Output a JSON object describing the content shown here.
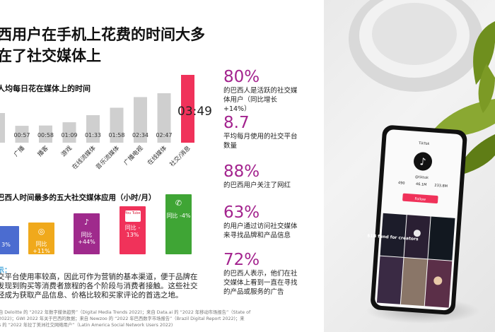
{
  "title_line1": "西用户在手机上花费的时间大多",
  "title_line2": "在了社交媒体上",
  "chart1": {
    "title": "人均每日花在媒体上的时间",
    "highlight_color": "#f0325a",
    "base_color": "#cfcfcf"
  },
  "chart_data": [
    {
      "type": "bar",
      "title": "人均每日花在媒体上的时间",
      "categories": [
        "",
        "广播",
        "播客",
        "游戏",
        "在线流媒体",
        "音乐流媒体",
        "广播电视",
        "在线媒体",
        "社交/消息"
      ],
      "value_labels": [
        "",
        "00:57",
        "00:58",
        "01:09",
        "01:33",
        "01:58",
        "02:34",
        "02:47",
        "03:49"
      ],
      "values_minutes": [
        null,
        57,
        58,
        69,
        93,
        118,
        154,
        167,
        229
      ]
    },
    {
      "type": "bar",
      "title": "巴西人时间最多的五大社交媒体应用（小时/月）",
      "categories": [
        "",
        "Instagram",
        "TikTok",
        "YouTube",
        "WhatsApp"
      ],
      "labels": [
        "3%",
        "同比 +11%",
        "同比 +44%",
        "同比 - 13%",
        "同比 -4%"
      ]
    }
  ],
  "chart2": {
    "title": "巴西人时间最多的五大社交媒体应用（小时/月）",
    "apps": [
      {
        "name": "",
        "icon": "",
        "label": "3%",
        "color": "#4b6cd0"
      },
      {
        "name": "Instagram",
        "icon": "instagram-icon",
        "label": "同比 +11%",
        "color": "#f0a91c"
      },
      {
        "name": "TikTok",
        "icon": "tiktok-icon",
        "label": "同比 +44%",
        "color": "#9f2a8c"
      },
      {
        "name": "YouTube",
        "icon": "youtube-icon",
        "label": "同比 - 13%",
        "color": "#f0325a",
        "icon_text": "You Tube"
      },
      {
        "name": "WhatsApp",
        "icon": "whatsapp-icon",
        "label": "同比 -4%",
        "color": "#3fa535"
      }
    ]
  },
  "stats": [
    {
      "num": "80%",
      "desc": "的巴西人是活跃的社交媒体用户（同比增长 +14%）"
    },
    {
      "num": "8.7",
      "desc": "平均每月使用的社交平台数量"
    },
    {
      "num": "88%",
      "desc": "的巴西用户关注了网红"
    },
    {
      "num": "63%",
      "desc": "的用户通过访问社交媒体来寻找品牌和产品信息"
    },
    {
      "num": "72%",
      "desc": "的巴西人表示，他们在社交媒体上看到一直在寻找的产品或服务的广告"
    }
  ],
  "tip_head": "示：",
  "tip_lines": [
    "交平台使用率较高，因此可作为营销的基本渠道，便于品牌在",
    "发现到购买等消费者旅程的各个阶段与消费者接触。这些社交",
    "经成为获取产品信息、价格比较和买家评论的首选之地。"
  ],
  "source_lines": [
    "自 Deloitte 的 “2022 年数字媒体趋势”（Digital Media Trends 2022)；来自 Data.ai 的 “2022 年移动市场报告”（State of",
    "2022)；GWI 2022 年关于巴西的数据；来自 Newzoo 的 “2022 年巴西数字市场报告”（Brazil Digital Report 2022)；来",
    "s 的 “2022 年拉丁美洲社交网络用户”（Latin America Social Network Users 2022)"
  ],
  "phone": {
    "app_name": "TikTok",
    "handle": "@tiktok",
    "count1": "490",
    "count2": "46.1M",
    "count3": "233.8M",
    "follow_label": "Follow",
    "video_text": "$1B fund for creators"
  }
}
